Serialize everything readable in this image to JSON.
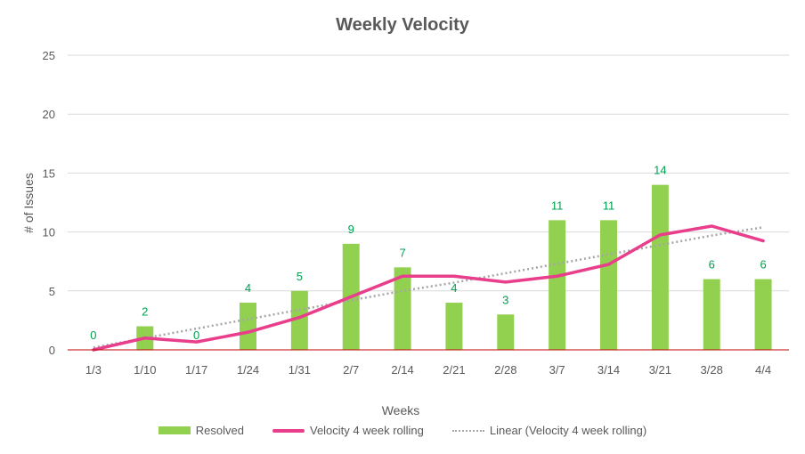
{
  "chart_data": {
    "type": "bar",
    "title": "Weekly Velocity",
    "xlabel": "Weeks",
    "ylabel": "# of Issues",
    "ylim": [
      0,
      25
    ],
    "yticks": [
      0,
      5,
      10,
      15,
      20,
      25
    ],
    "grid": true,
    "legend_position": "bottom",
    "categories": [
      "1/3",
      "1/10",
      "1/17",
      "1/24",
      "1/31",
      "2/7",
      "2/14",
      "2/21",
      "2/28",
      "3/7",
      "3/14",
      "3/21",
      "3/28",
      "4/4"
    ],
    "series": [
      {
        "name": "Resolved",
        "type": "bar",
        "color": "#92d050",
        "values": [
          0,
          2,
          0,
          4,
          5,
          9,
          7,
          4,
          3,
          11,
          11,
          14,
          6,
          6
        ],
        "data_labels": true,
        "label_color": "#00a050"
      },
      {
        "name": "Velocity 4 week rolling",
        "type": "line",
        "color": "#e83e8c",
        "values": [
          0,
          1,
          0.67,
          1.5,
          2.75,
          4.5,
          6.25,
          6.25,
          5.75,
          6.25,
          7.25,
          9.75,
          10.5,
          9.25
        ]
      },
      {
        "name": "Linear (Velocity 4 week rolling)",
        "type": "trendline",
        "color": "#a6a6a6",
        "style": "dotted",
        "values": [
          0.2,
          1.0,
          1.8,
          2.6,
          3.4,
          4.2,
          5.0,
          5.7,
          6.5,
          7.3,
          8.1,
          8.9,
          9.7,
          10.4
        ]
      }
    ]
  }
}
